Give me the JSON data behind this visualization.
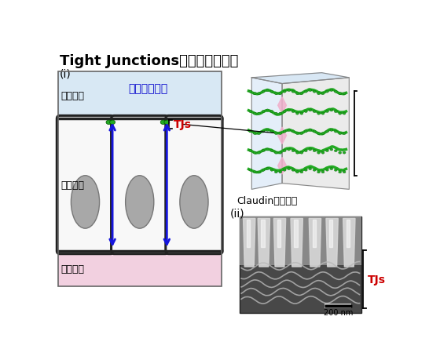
{
  "title": "Tight Junctionsを表した模式図",
  "title_fontsize": 13,
  "label_i": "(i)",
  "label_ii": "(ii)",
  "label_claudin": "Claudinの重合体",
  "label_tissue_outer": "組織外側",
  "label_tissue_inner": "組織内側",
  "label_epithelial": "上皮細胞",
  "label_pathway": "細胞間隙経路",
  "label_tjs": "TJs",
  "label_200nm": "200 nm",
  "bg_color": "#ffffff",
  "tissue_outer_color": "#d8e8f4",
  "tissue_inner_color": "#f2d0e0",
  "cell_body_color": "#f8f8f8",
  "nucleus_color": "#a8a8a8",
  "arrow_color": "#1515dd",
  "tj_color": "#22aa22",
  "red_color": "#cc0000",
  "blue_text_color": "#0000cc",
  "cell_border_color": "#222222"
}
